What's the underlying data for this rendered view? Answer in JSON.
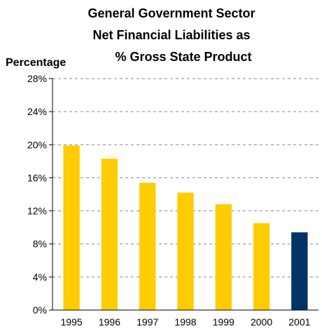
{
  "chart_data": {
    "type": "bar",
    "title_lines": [
      "General Government Sector",
      "Net Financial Liabilities as",
      "% Gross State Product"
    ],
    "ylabel": "Percentage",
    "xlabel": "",
    "categories": [
      "1995",
      "1996",
      "1997",
      "1998",
      "1999",
      "2000",
      "2001"
    ],
    "values": [
      19.9,
      18.3,
      15.4,
      14.2,
      12.8,
      10.5,
      9.4
    ],
    "bar_colors": [
      "#FFCC00",
      "#FFCC00",
      "#FFCC00",
      "#FFCC00",
      "#FFCC00",
      "#FFCC00",
      "#003366"
    ],
    "ylim": [
      0,
      28
    ],
    "yticks": [
      0,
      4,
      8,
      12,
      16,
      20,
      24,
      28
    ],
    "ytick_labels": [
      "0%",
      "4%",
      "8%",
      "12%",
      "16%",
      "20%",
      "24%",
      "28%"
    ],
    "grid": true,
    "legend": "none"
  }
}
